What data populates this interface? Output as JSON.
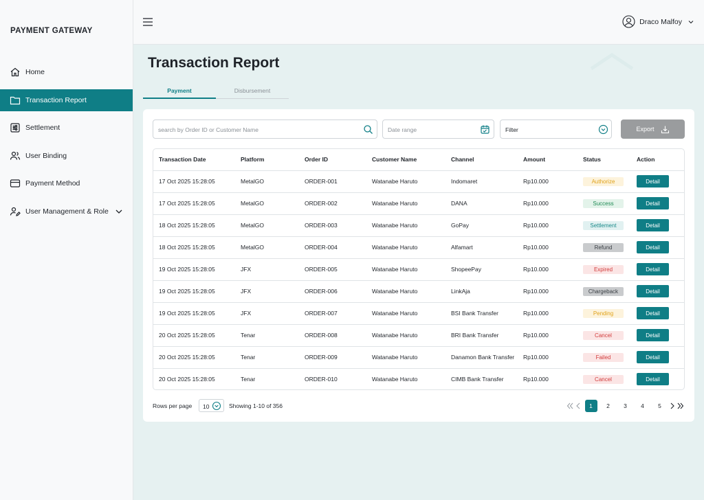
{
  "brand": "PAYMENT GATEWAY",
  "sidebar": {
    "items": [
      {
        "label": "Home",
        "icon": "home-icon"
      },
      {
        "label": "Transaction Report",
        "icon": "folder-icon",
        "active": true
      },
      {
        "label": "Settlement",
        "icon": "sliders-icon"
      },
      {
        "label": "User Binding",
        "icon": "users-icon"
      },
      {
        "label": "Payment Method",
        "icon": "card-icon"
      },
      {
        "label": "User Management & Role",
        "icon": "user-edit-icon",
        "expandable": true
      }
    ]
  },
  "header": {
    "user_name": "Draco Malfoy"
  },
  "page": {
    "title": "Transaction Report",
    "tabs": [
      {
        "label": "Payment",
        "active": true
      },
      {
        "label": "Disbursement",
        "active": false
      }
    ]
  },
  "toolbar": {
    "search_placeholder": "search by Order ID or Customer Name",
    "date_placeholder": "Date range",
    "filter_label": "Filter",
    "export_label": "Export"
  },
  "table": {
    "columns": [
      "Transaction Date",
      "Platform",
      "Order ID",
      "Customer Name",
      "Channel",
      "Amount",
      "Status",
      "Action"
    ],
    "detail_label": "Detail",
    "rows": [
      {
        "date": "17 Oct 2025 15:28:05",
        "platform": "MetalGO",
        "order": "ORDER-001",
        "customer": "Watanabe Haruto",
        "channel": "Indomaret",
        "amount": "Rp10.000",
        "status": "Authorize"
      },
      {
        "date": "17 Oct 2025 15:28:05",
        "platform": "MetalGO",
        "order": "ORDER-002",
        "customer": "Watanabe Haruto",
        "channel": "DANA",
        "amount": "Rp10.000",
        "status": "Success"
      },
      {
        "date": "18 Oct 2025 15:28:05",
        "platform": "MetalGO",
        "order": "ORDER-003",
        "customer": "Watanabe Haruto",
        "channel": "GoPay",
        "amount": "Rp10.000",
        "status": "Settlement"
      },
      {
        "date": "18 Oct 2025 15:28:05",
        "platform": "MetalGO",
        "order": "ORDER-004",
        "customer": "Watanabe Haruto",
        "channel": "Alfamart",
        "amount": "Rp10.000",
        "status": "Refund"
      },
      {
        "date": "19 Oct 2025 15:28:05",
        "platform": "JFX",
        "order": "ORDER-005",
        "customer": "Watanabe Haruto",
        "channel": "ShopeePay",
        "amount": "Rp10.000",
        "status": "Expired"
      },
      {
        "date": "19 Oct 2025 15:28:05",
        "platform": "JFX",
        "order": "ORDER-006",
        "customer": "Watanabe Haruto",
        "channel": "LinkAja",
        "amount": "Rp10.000",
        "status": "Chargeback"
      },
      {
        "date": "19 Oct 2025 15:28:05",
        "platform": "JFX",
        "order": "ORDER-007",
        "customer": "Watanabe Haruto",
        "channel": "BSI Bank Transfer",
        "amount": "Rp10.000",
        "status": "Pending"
      },
      {
        "date": "20 Oct 2025 15:28:05",
        "platform": "Tenar",
        "order": "ORDER-008",
        "customer": "Watanabe Haruto",
        "channel": "BRI Bank Transfer",
        "amount": "Rp10.000",
        "status": "Cancel"
      },
      {
        "date": "20 Oct 2025 15:28:05",
        "platform": "Tenar",
        "order": "ORDER-009",
        "customer": "Watanabe Haruto",
        "channel": "Danamon Bank Transfer",
        "amount": "Rp10.000",
        "status": "Failed"
      },
      {
        "date": "20 Oct 2025 15:28:05",
        "platform": "Tenar",
        "order": "ORDER-010",
        "customer": "Watanabe Haruto",
        "channel": "CIMB Bank Transfer",
        "amount": "Rp10.000",
        "status": "Cancel"
      }
    ]
  },
  "status_colors": {
    "Authorize": {
      "bg": "#fdf3dc",
      "fg": "#e0a21a"
    },
    "Success": {
      "bg": "#e3f3ea",
      "fg": "#1f8a54"
    },
    "Settlement": {
      "bg": "#e1f1f1",
      "fg": "#1a8a8a"
    },
    "Refund": {
      "bg": "#c9cbcd",
      "fg": "#3a3f44"
    },
    "Expired": {
      "bg": "#fbe5e5",
      "fg": "#d23c3c"
    },
    "Chargeback": {
      "bg": "#c9cbcd",
      "fg": "#3a3f44"
    },
    "Pending": {
      "bg": "#fdf3dc",
      "fg": "#e0a21a"
    },
    "Cancel": {
      "bg": "#fbe5e5",
      "fg": "#d23c3c"
    },
    "Failed": {
      "bg": "#fbe5e5",
      "fg": "#d23c3c"
    }
  },
  "accent_color": "#0f7e86",
  "pagination": {
    "rows_per_page_label": "Rows per page",
    "rows_per_page": "10",
    "showing": "Showing 1-10 of 356",
    "pages": [
      "1",
      "2",
      "3",
      "4",
      "5"
    ],
    "current": "1"
  }
}
